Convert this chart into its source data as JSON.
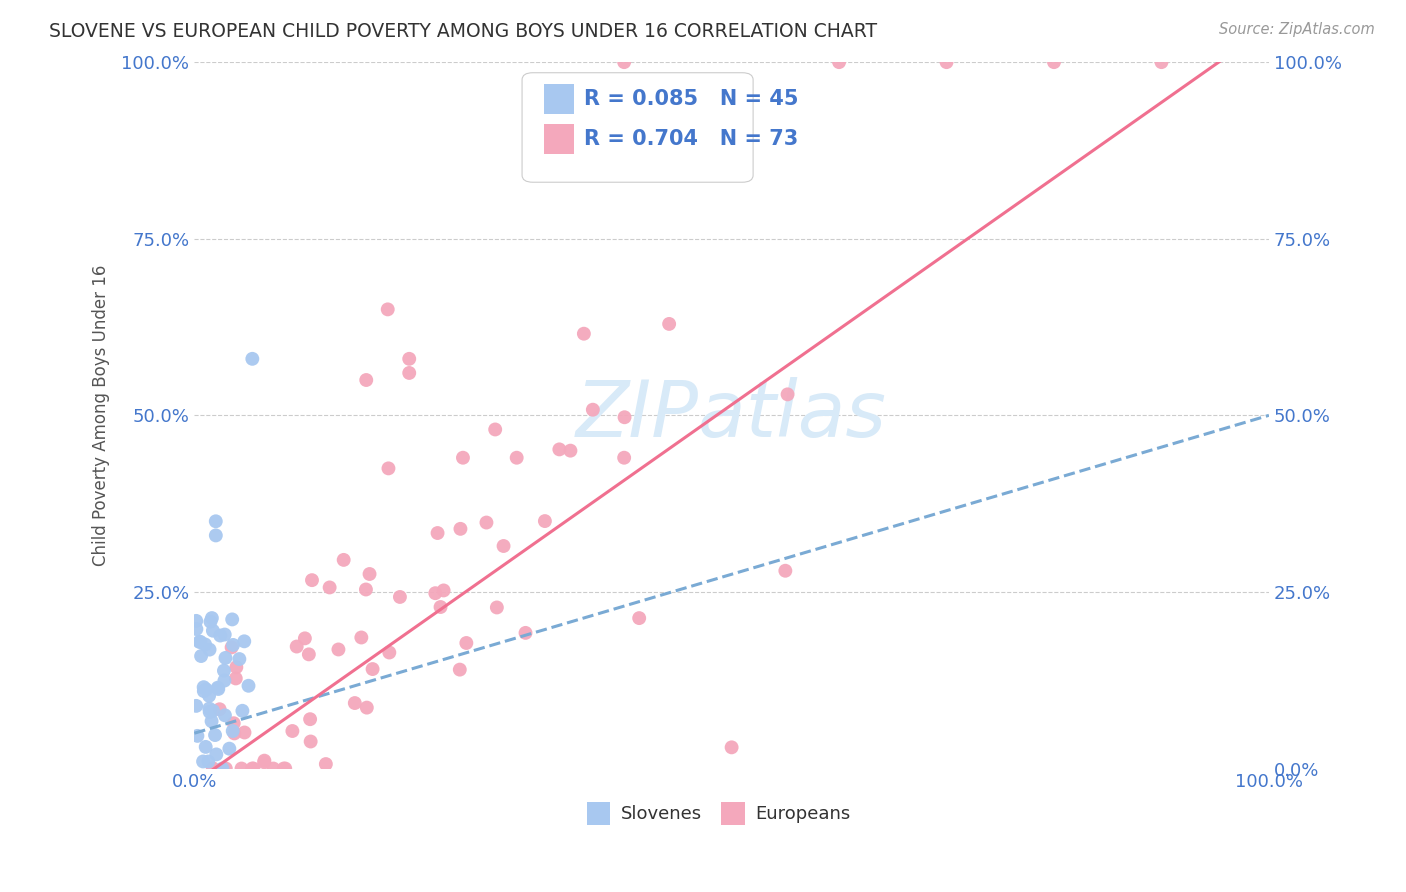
{
  "title": "SLOVENE VS EUROPEAN CHILD POVERTY AMONG BOYS UNDER 16 CORRELATION CHART",
  "source": "Source: ZipAtlas.com",
  "ylabel": "Child Poverty Among Boys Under 16",
  "xlim": [
    0,
    1
  ],
  "ylim": [
    0,
    1
  ],
  "slovene_color": "#a8c8f0",
  "european_color": "#f4a8bc",
  "slovene_line_color": "#7aaad4",
  "european_line_color": "#f07090",
  "text_color": "#4477cc",
  "watermark_color": "#d8eaf8",
  "background_color": "#ffffff",
  "grid_color": "#cccccc",
  "title_color": "#333333",
  "source_color": "#999999",
  "legend_R1": "R = 0.085",
  "legend_N1": "N = 45",
  "legend_R2": "R = 0.704",
  "legend_N2": "N = 73",
  "legend_label1": "Slovenes",
  "legend_label2": "Europeans"
}
